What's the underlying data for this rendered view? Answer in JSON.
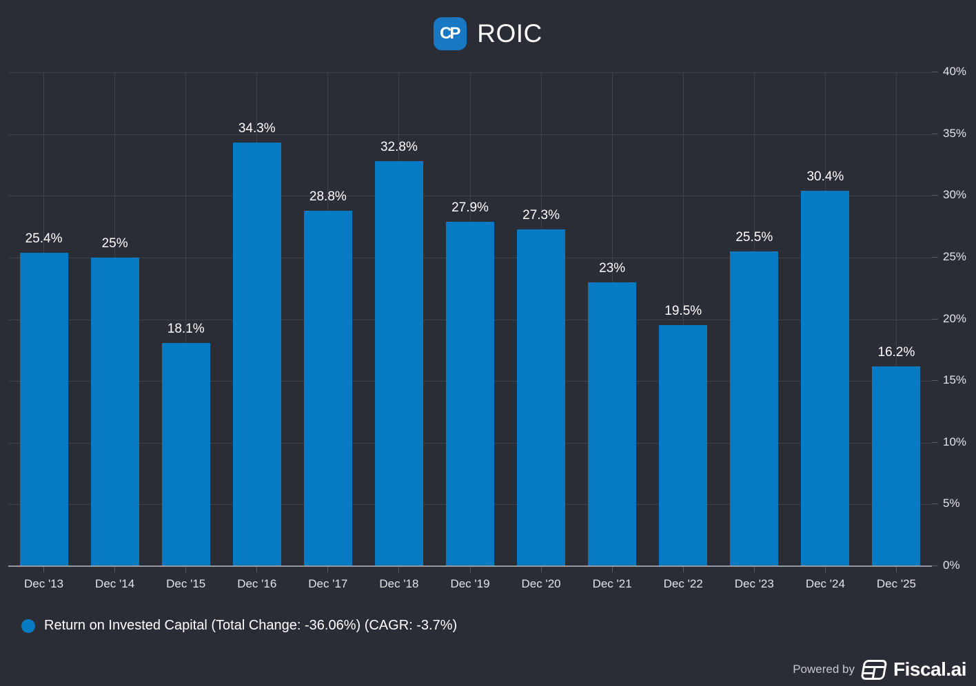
{
  "window": {
    "background_color": "#2B2D36"
  },
  "header": {
    "title": "ROIC",
    "logo_monogram": "CP",
    "logo_color": "#1878C4"
  },
  "chart_data": {
    "type": "bar",
    "title": "ROIC",
    "categories": [
      "Dec '13",
      "Dec '14",
      "Dec '15",
      "Dec '16",
      "Dec '17",
      "Dec '18",
      "Dec '19",
      "Dec '20",
      "Dec '21",
      "Dec '22",
      "Dec '23",
      "Dec '24",
      "Dec '25"
    ],
    "series": [
      {
        "name": "Return on Invested Capital",
        "color": "#067BC4",
        "values": [
          25.4,
          25,
          18.1,
          34.3,
          28.8,
          32.8,
          27.9,
          27.3,
          23,
          19.5,
          25.5,
          30.4,
          16.2
        ],
        "labels": [
          "25.4%",
          "25%",
          "18.1%",
          "34.3%",
          "28.8%",
          "32.8%",
          "27.9%",
          "27.3%",
          "23%",
          "19.5%",
          "25.5%",
          "30.4%",
          "16.2%"
        ]
      }
    ],
    "xlabel": "",
    "ylabel": "",
    "ylim": [
      0,
      40
    ],
    "ytick_step": 5,
    "ytick_labels": [
      "0%",
      "5%",
      "10%",
      "15%",
      "20%",
      "25%",
      "30%",
      "35%",
      "40%"
    ],
    "grid": true,
    "yaxis_side": "right",
    "legend_position": "bottom-left"
  },
  "legend": {
    "label": "Return on Invested Capital (Total Change: -36.06%) (CAGR: -3.7%)",
    "marker_color": "#067BC4"
  },
  "footer": {
    "powered_by_label": "Powered by",
    "brand_name": "Fiscal.ai"
  }
}
